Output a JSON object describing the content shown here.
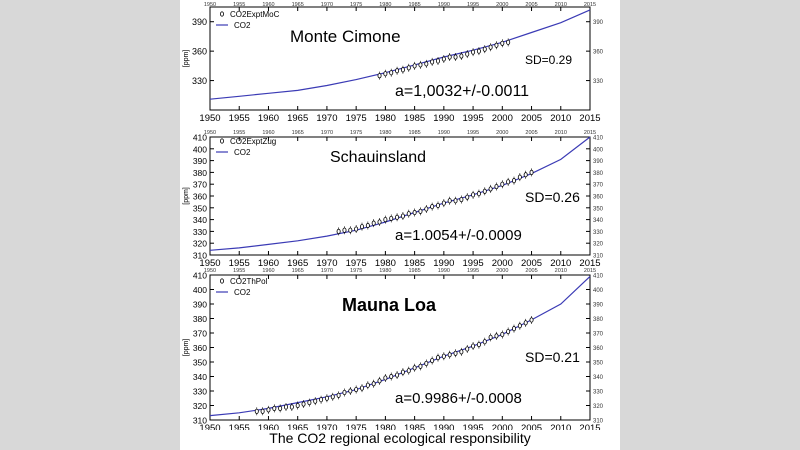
{
  "caption": "The CO2 regional ecological responsibility",
  "colors": {
    "model_line": "#3b3bb5",
    "markers": "#000000",
    "axis": "#000000",
    "grid": "#cfcfcf"
  },
  "chart_data": [
    {
      "type": "scatter",
      "title": "Monte Cimone",
      "ylabel": "[ppm]",
      "xlim": [
        1950,
        2015
      ],
      "ylim": [
        300,
        405
      ],
      "x_ticks": [
        1950,
        1955,
        1960,
        1965,
        1970,
        1975,
        1980,
        1985,
        1990,
        1995,
        2000,
        2005,
        2010,
        2015
      ],
      "y_ticks": [
        330,
        360,
        390
      ],
      "legend": {
        "position": "top-left",
        "entries": [
          "CO2ExptMoC",
          "CO2"
        ]
      },
      "annotations": {
        "sd": "SD=0.29",
        "fit": "a=1,0032+/-0.0011"
      },
      "series": [
        {
          "name": "CO2",
          "kind": "line",
          "x": [
            1950,
            1955,
            1960,
            1965,
            1970,
            1975,
            1980,
            1985,
            1990,
            1995,
            2000,
            2005,
            2010,
            2015
          ],
          "y": [
            311,
            314,
            317,
            320,
            325,
            331,
            338,
            346,
            354,
            361,
            369,
            379,
            389,
            402
          ]
        },
        {
          "name": "CO2ExptMoC",
          "kind": "markers",
          "x": [
            1979,
            1980,
            1981,
            1982,
            1983,
            1984,
            1985,
            1986,
            1987,
            1988,
            1989,
            1990,
            1991,
            1992,
            1993,
            1994,
            1995,
            1996,
            1997,
            1998,
            1999,
            2000,
            2001
          ],
          "y": [
            335,
            337,
            338,
            340,
            341,
            343,
            345,
            346,
            347,
            349,
            350,
            352,
            354,
            354,
            355,
            357,
            359,
            360,
            362,
            364,
            366,
            368,
            369
          ]
        }
      ]
    },
    {
      "type": "scatter",
      "title": "Schauinsland",
      "ylabel": "[ppm]",
      "xlim": [
        1950,
        2015
      ],
      "ylim": [
        310,
        410
      ],
      "x_ticks": [
        1950,
        1955,
        1960,
        1965,
        1970,
        1975,
        1980,
        1985,
        1990,
        1995,
        2000,
        2005,
        2010,
        2015
      ],
      "y_ticks": [
        310,
        320,
        330,
        340,
        350,
        360,
        370,
        380,
        390,
        400,
        410
      ],
      "legend": {
        "position": "top-left",
        "entries": [
          "CO2ExptZug",
          "CO2"
        ]
      },
      "annotations": {
        "sd": "SD=0.26",
        "fit": "a=1.0054+/-0.0009"
      },
      "series": [
        {
          "name": "CO2",
          "kind": "line",
          "x": [
            1950,
            1955,
            1960,
            1965,
            1970,
            1975,
            1980,
            1985,
            1990,
            1995,
            2000,
            2005,
            2010,
            2015
          ],
          "y": [
            314,
            316,
            319,
            322,
            326,
            331,
            338,
            346,
            354,
            361,
            369,
            379,
            391,
            410
          ]
        },
        {
          "name": "CO2ExptZug",
          "kind": "markers",
          "x": [
            1972,
            1973,
            1974,
            1975,
            1976,
            1977,
            1978,
            1979,
            1980,
            1981,
            1982,
            1983,
            1984,
            1985,
            1986,
            1987,
            1988,
            1989,
            1990,
            1991,
            1992,
            1993,
            1994,
            1995,
            1996,
            1997,
            1998,
            1999,
            2000,
            2001,
            2002,
            2003,
            2004,
            2005
          ],
          "y": [
            330,
            331,
            331,
            332,
            334,
            335,
            337,
            338,
            340,
            341,
            342,
            343,
            345,
            346,
            347,
            349,
            351,
            352,
            354,
            356,
            356,
            357,
            359,
            361,
            362,
            364,
            366,
            368,
            370,
            372,
            373,
            376,
            378,
            380
          ]
        }
      ]
    },
    {
      "type": "scatter",
      "title": "Mauna Loa",
      "ylabel": "[ppm]",
      "xlim": [
        1950,
        2015
      ],
      "ylim": [
        310,
        410
      ],
      "x_ticks": [
        1950,
        1955,
        1960,
        1965,
        1970,
        1975,
        1980,
        1985,
        1990,
        1995,
        2000,
        2005,
        2010,
        2015
      ],
      "y_ticks": [
        310,
        320,
        330,
        340,
        350,
        360,
        370,
        380,
        390,
        400,
        410
      ],
      "legend": {
        "position": "top-left",
        "entries": [
          "CO2ThPol",
          "CO2"
        ]
      },
      "annotations": {
        "sd": "SD=0.21",
        "fit": "a=0.9986+/-0.0008"
      },
      "series": [
        {
          "name": "CO2",
          "kind": "line",
          "x": [
            1950,
            1955,
            1960,
            1965,
            1970,
            1975,
            1980,
            1985,
            1990,
            1995,
            2000,
            2005,
            2010,
            2015
          ],
          "y": [
            313,
            315,
            318,
            322,
            326,
            331,
            338,
            346,
            354,
            361,
            369,
            379,
            390,
            409
          ]
        },
        {
          "name": "CO2ThPol",
          "kind": "markers",
          "x": [
            1958,
            1959,
            1960,
            1961,
            1962,
            1963,
            1964,
            1965,
            1966,
            1967,
            1968,
            1969,
            1970,
            1971,
            1972,
            1973,
            1974,
            1975,
            1976,
            1977,
            1978,
            1979,
            1980,
            1981,
            1982,
            1983,
            1984,
            1985,
            1986,
            1987,
            1988,
            1989,
            1990,
            1991,
            1992,
            1993,
            1994,
            1995,
            1996,
            1997,
            1998,
            1999,
            2000,
            2001,
            2002,
            2003,
            2004,
            2005
          ],
          "y": [
            316,
            316,
            317,
            318,
            318,
            319,
            319,
            320,
            321,
            322,
            323,
            324,
            325,
            326,
            327,
            329,
            330,
            331,
            332,
            334,
            335,
            337,
            339,
            340,
            341,
            343,
            344,
            346,
            347,
            349,
            351,
            353,
            354,
            355,
            356,
            357,
            359,
            361,
            362,
            364,
            367,
            368,
            369,
            371,
            373,
            375,
            377,
            379
          ]
        }
      ]
    }
  ]
}
